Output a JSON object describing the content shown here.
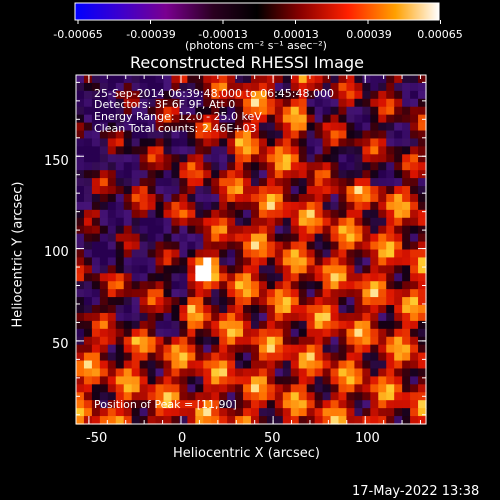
{
  "colorbar": {
    "tick_labels": [
      "-0.00065",
      "-0.00039",
      "-0.00013",
      "0.00013",
      "0.00039",
      "0.00065"
    ],
    "unit_label": "(photons cm⁻² s⁻¹ asec⁻²)",
    "range": [
      -0.00065,
      0.00065
    ]
  },
  "chart_data": {
    "type": "heatmap",
    "title": "Reconstructed RHESSI Image",
    "xlabel": "Heliocentric X (arcsec)",
    "ylabel": "Heliocentric Y (arcsec)",
    "xlim": [
      -57,
      133
    ],
    "ylim": [
      5,
      194
    ],
    "x_ticks": [
      "-50",
      "0",
      "50",
      "100"
    ],
    "y_ticks": [
      "50",
      "100",
      "150"
    ],
    "annotations": [
      "25-Sep-2014 06:39:48.000 to 06:45:48.000",
      "Detectors: 3F 6F 9F, Att 0",
      "Energy Range: 12.0 - 25.0 keV",
      "Clean     Total counts: 2.46E+03"
    ],
    "peak_label": "Position of Peak = [11,90]",
    "peak_position": [
      11,
      90
    ]
  },
  "footer": {
    "timestamp": "17-May-2022 13:38"
  }
}
